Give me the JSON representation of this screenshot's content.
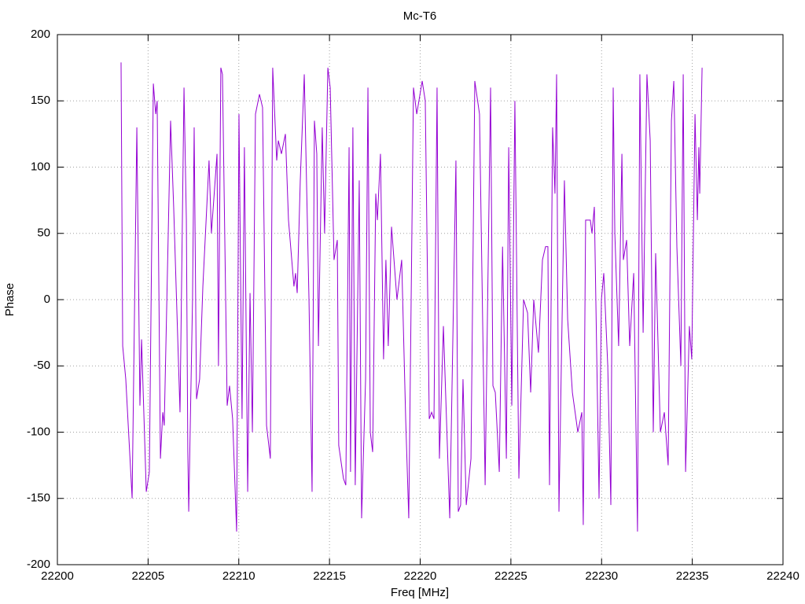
{
  "chart_data": {
    "type": "line",
    "title": "Mc-T6",
    "x_label": "Freq [MHz]",
    "y_label": "Phase",
    "xlim": [
      22200,
      22240
    ],
    "ylim": [
      -200,
      200
    ],
    "xticks": [
      22200,
      22205,
      22210,
      22215,
      22220,
      22225,
      22230,
      22235,
      22240
    ],
    "yticks": [
      -200,
      -150,
      -100,
      -50,
      0,
      50,
      100,
      150,
      200
    ],
    "grid": true,
    "series": [
      {
        "color": "#9400d3",
        "x": [
          22203.51,
          22203.6,
          22203.77,
          22204.12,
          22204.38,
          22204.55,
          22204.64,
          22204.9,
          22205.07,
          22205.29,
          22205.42,
          22205.5,
          22205.68,
          22205.81,
          22205.89,
          22206.24,
          22206.41,
          22206.76,
          22206.98,
          22207.11,
          22207.19,
          22207.24,
          22207.45,
          22207.54,
          22207.67,
          22207.84,
          22208.02,
          22208.36,
          22208.49,
          22208.8,
          22208.88,
          22209.01,
          22209.1,
          22209.36,
          22209.49,
          22209.66,
          22209.88,
          22210.01,
          22210.18,
          22210.31,
          22210.49,
          22210.62,
          22210.75,
          22210.92,
          22211.14,
          22211.31,
          22211.53,
          22211.74,
          22211.87,
          22212.09,
          22212.18,
          22212.35,
          22212.57,
          22212.74,
          22213.04,
          22213.13,
          22213.22,
          22213.39,
          22213.61,
          22213.87,
          22214.04,
          22214.17,
          22214.3,
          22214.39,
          22214.6,
          22214.73,
          22214.91,
          22215.04,
          22215.25,
          22215.43,
          22215.51,
          22215.77,
          22215.9,
          22216.08,
          22216.16,
          22216.29,
          22216.42,
          22216.64,
          22216.77,
          22216.99,
          22217.12,
          22217.25,
          22217.38,
          22217.55,
          22217.64,
          22217.81,
          22217.98,
          22218.11,
          22218.24,
          22218.42,
          22218.72,
          22218.98,
          22219.2,
          22219.37,
          22219.63,
          22219.81,
          22220.11,
          22220.28,
          22220.5,
          22220.63,
          22220.76,
          22220.93,
          22221.06,
          22221.28,
          22221.63,
          22221.8,
          22221.97,
          22222.1,
          22222.23,
          22222.36,
          22222.54,
          22222.8,
          22223.01,
          22223.27,
          22223.58,
          22223.88,
          22224.01,
          22224.14,
          22224.36,
          22224.54,
          22224.75,
          22224.88,
          22225.05,
          22225.22,
          22225.44,
          22225.7,
          22225.92,
          22226.09,
          22226.26,
          22226.52,
          22226.74,
          22226.91,
          22227.04,
          22227.13,
          22227.3,
          22227.43,
          22227.52,
          22227.65,
          22227.78,
          22227.95,
          22228.13,
          22228.39,
          22228.69,
          22228.91,
          22228.99,
          22229.12,
          22229.38,
          22229.47,
          22229.6,
          22229.86,
          22229.99,
          22230.12,
          22230.34,
          22230.51,
          22230.64,
          22230.73,
          22230.94,
          22231.12,
          22231.2,
          22231.38,
          22231.55,
          22231.77,
          22231.98,
          22232.11,
          22232.29,
          22232.5,
          22232.68,
          22232.85,
          22232.98,
          22233.24,
          22233.46,
          22233.67,
          22233.85,
          22233.98,
          22234.15,
          22234.37,
          22234.5,
          22234.63,
          22234.84,
          22234.97,
          22235.15,
          22235.28,
          22235.36,
          22235.41,
          22235.54
        ],
        "values": [
          179,
          -35,
          -60,
          -150,
          130,
          -80,
          -30,
          -145,
          -130,
          163,
          140,
          150,
          -120,
          -85,
          -95,
          135,
          70,
          -85,
          160,
          60,
          -115,
          -160,
          0,
          130,
          -75,
          -60,
          10,
          105,
          50,
          110,
          -50,
          175,
          170,
          -80,
          -65,
          -90,
          -175,
          140,
          -90,
          115,
          -145,
          5,
          -100,
          140,
          155,
          145,
          -95,
          -120,
          175,
          105,
          120,
          110,
          125,
          60,
          10,
          20,
          5,
          90,
          170,
          0,
          -145,
          135,
          110,
          -35,
          130,
          50,
          175,
          160,
          30,
          45,
          -110,
          -135,
          -140,
          115,
          -130,
          130,
          -140,
          90,
          -165,
          -60,
          160,
          -100,
          -115,
          80,
          60,
          110,
          -45,
          30,
          -35,
          55,
          0,
          30,
          -90,
          -165,
          160,
          140,
          165,
          150,
          -90,
          -85,
          -90,
          160,
          -120,
          -20,
          -165,
          -30,
          105,
          -160,
          -155,
          -60,
          -155,
          -120,
          165,
          140,
          -140,
          160,
          -65,
          -70,
          -130,
          40,
          -120,
          115,
          -80,
          150,
          -135,
          0,
          -10,
          -70,
          0,
          -40,
          30,
          40,
          40,
          -140,
          130,
          80,
          170,
          -160,
          -50,
          90,
          -15,
          -70,
          -100,
          -85,
          -170,
          60,
          60,
          50,
          70,
          -150,
          0,
          20,
          -50,
          -155,
          160,
          50,
          -35,
          110,
          30,
          45,
          -35,
          20,
          -175,
          170,
          -25,
          170,
          120,
          -100,
          35,
          -100,
          -85,
          -125,
          135,
          165,
          40,
          -50,
          170,
          -130,
          -20,
          -45,
          140,
          60,
          115,
          80,
          175
        ]
      }
    ]
  }
}
